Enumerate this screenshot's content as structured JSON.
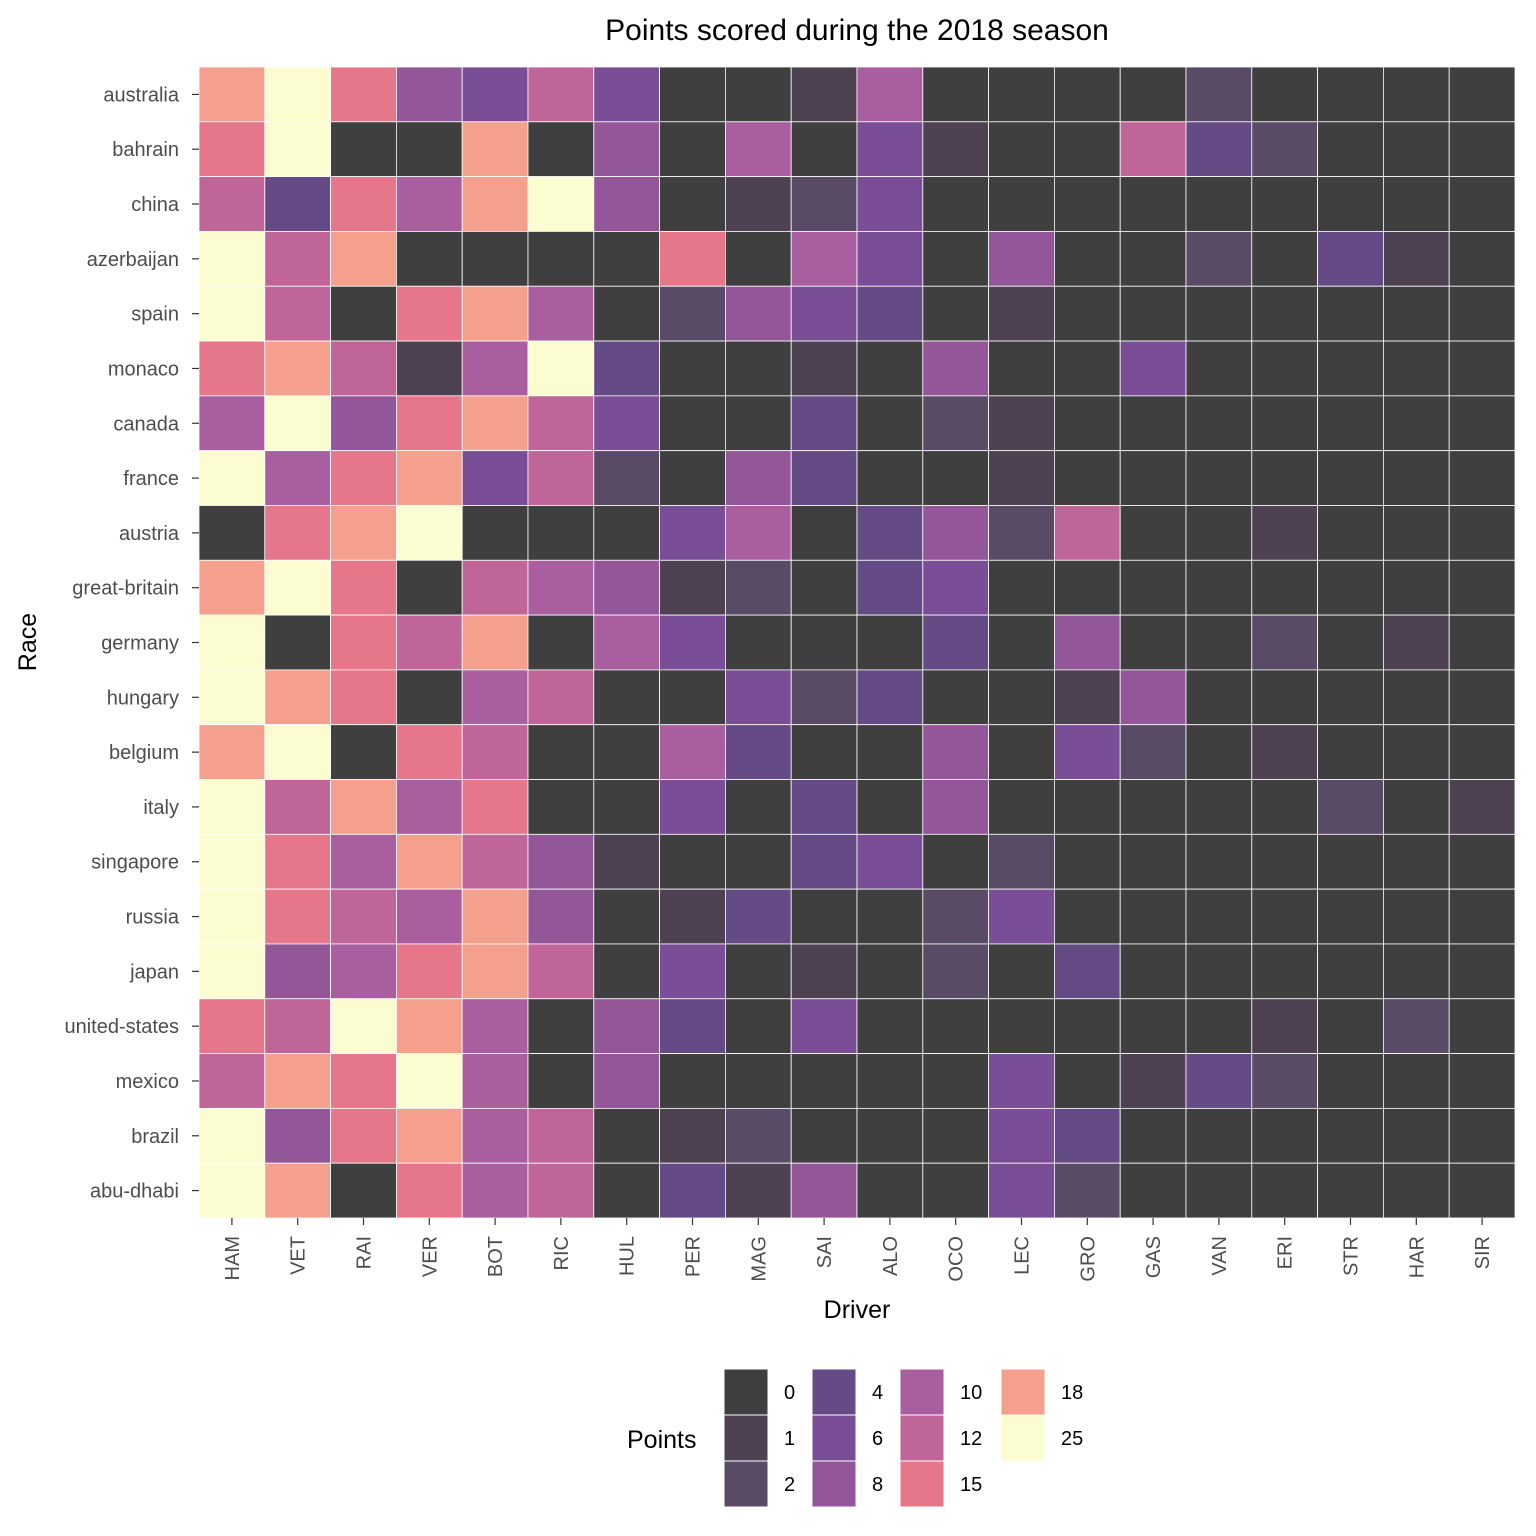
{
  "chart_data": {
    "type": "heatmap",
    "title": "Points scored during the 2018 season",
    "xlabel": "Driver",
    "ylabel": "Race",
    "x_categories": [
      "HAM",
      "VET",
      "RAI",
      "VER",
      "BOT",
      "RIC",
      "HUL",
      "PER",
      "MAG",
      "SAI",
      "ALO",
      "OCO",
      "LEC",
      "GRO",
      "GAS",
      "VAN",
      "ERI",
      "STR",
      "HAR",
      "SIR"
    ],
    "y_categories": [
      "australia",
      "bahrain",
      "china",
      "azerbaijan",
      "spain",
      "monaco",
      "canada",
      "france",
      "austria",
      "great-britain",
      "germany",
      "hungary",
      "belgium",
      "italy",
      "singapore",
      "russia",
      "japan",
      "united-states",
      "mexico",
      "brazil",
      "abu-dhabi"
    ],
    "values": [
      [
        18,
        25,
        15,
        8,
        6,
        12,
        6,
        0,
        0,
        1,
        10,
        0,
        0,
        0,
        0,
        2,
        0,
        0,
        0,
        0
      ],
      [
        15,
        25,
        0,
        0,
        18,
        0,
        8,
        0,
        10,
        0,
        6,
        1,
        0,
        0,
        12,
        4,
        2,
        0,
        0,
        0
      ],
      [
        12,
        4,
        15,
        10,
        18,
        25,
        8,
        0,
        1,
        2,
        6,
        0,
        0,
        0,
        0,
        0,
        0,
        0,
        0,
        0
      ],
      [
        25,
        12,
        18,
        0,
        0,
        0,
        0,
        15,
        0,
        10,
        6,
        0,
        8,
        0,
        0,
        2,
        0,
        4,
        1,
        0
      ],
      [
        25,
        12,
        0,
        15,
        18,
        10,
        0,
        2,
        8,
        6,
        4,
        0,
        1,
        0,
        0,
        0,
        0,
        0,
        0,
        0
      ],
      [
        15,
        18,
        12,
        1,
        10,
        25,
        4,
        0,
        0,
        1,
        0,
        8,
        0,
        0,
        6,
        0,
        0,
        0,
        0,
        0
      ],
      [
        10,
        25,
        8,
        15,
        18,
        12,
        6,
        0,
        0,
        4,
        0,
        2,
        1,
        0,
        0,
        0,
        0,
        0,
        0,
        0
      ],
      [
        25,
        10,
        15,
        18,
        6,
        12,
        2,
        0,
        8,
        4,
        0,
        0,
        1,
        0,
        0,
        0,
        0,
        0,
        0,
        0
      ],
      [
        0,
        15,
        18,
        25,
        0,
        0,
        0,
        6,
        10,
        0,
        4,
        8,
        2,
        12,
        0,
        0,
        1,
        0,
        0,
        0
      ],
      [
        18,
        25,
        15,
        0,
        12,
        10,
        8,
        1,
        2,
        0,
        4,
        6,
        0,
        0,
        0,
        0,
        0,
        0,
        0,
        0
      ],
      [
        25,
        0,
        15,
        12,
        18,
        0,
        10,
        6,
        0,
        0,
        0,
        4,
        0,
        8,
        0,
        0,
        2,
        0,
        1,
        0
      ],
      [
        25,
        18,
        15,
        0,
        10,
        12,
        0,
        0,
        6,
        2,
        4,
        0,
        0,
        1,
        8,
        0,
        0,
        0,
        0,
        0
      ],
      [
        18,
        25,
        0,
        15,
        12,
        0,
        0,
        10,
        4,
        0,
        0,
        8,
        0,
        6,
        2,
        0,
        1,
        0,
        0,
        0
      ],
      [
        25,
        12,
        18,
        10,
        15,
        0,
        0,
        6,
        0,
        4,
        0,
        8,
        0,
        0,
        0,
        0,
        0,
        2,
        0,
        1
      ],
      [
        25,
        15,
        10,
        18,
        12,
        8,
        1,
        0,
        0,
        4,
        6,
        0,
        2,
        0,
        0,
        0,
        0,
        0,
        0,
        0
      ],
      [
        25,
        15,
        12,
        10,
        18,
        8,
        0,
        1,
        4,
        0,
        0,
        2,
        6,
        0,
        0,
        0,
        0,
        0,
        0,
        0
      ],
      [
        25,
        8,
        10,
        15,
        18,
        12,
        0,
        6,
        0,
        1,
        0,
        2,
        0,
        4,
        0,
        0,
        0,
        0,
        0,
        0
      ],
      [
        15,
        12,
        25,
        18,
        10,
        0,
        8,
        4,
        0,
        6,
        0,
        0,
        0,
        0,
        0,
        0,
        1,
        0,
        2,
        0
      ],
      [
        12,
        18,
        15,
        25,
        10,
        0,
        8,
        0,
        0,
        0,
        0,
        0,
        6,
        0,
        1,
        4,
        2,
        0,
        0,
        0
      ],
      [
        25,
        8,
        15,
        18,
        10,
        12,
        0,
        1,
        2,
        0,
        0,
        0,
        6,
        4,
        0,
        0,
        0,
        0,
        0,
        0
      ],
      [
        25,
        18,
        0,
        15,
        10,
        12,
        0,
        4,
        1,
        8,
        0,
        0,
        6,
        2,
        0,
        0,
        0,
        0,
        0,
        0
      ]
    ],
    "legend": {
      "title": "Points",
      "levels": [
        0,
        1,
        2,
        4,
        6,
        8,
        10,
        12,
        15,
        18,
        25
      ],
      "colors": {
        "0": "#3f3f3f",
        "1": "#4e4152",
        "2": "#594a66",
        "4": "#654b85",
        "6": "#7a4d97",
        "8": "#935699",
        "10": "#a85e9f",
        "12": "#c06598",
        "15": "#e6778b",
        "18": "#f4a08d",
        "25": "#fbfcd0"
      },
      "placement": "bottom"
    },
    "grid": false
  }
}
